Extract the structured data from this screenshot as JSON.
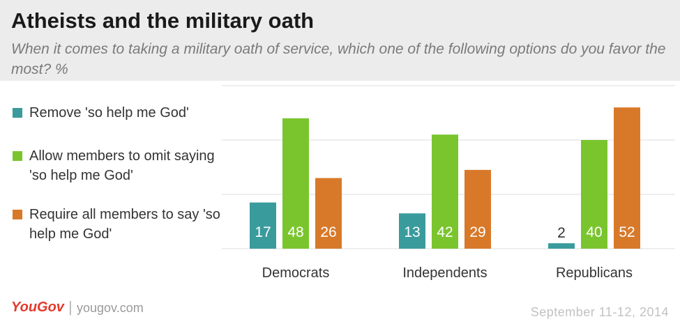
{
  "header": {
    "title": "Atheists and the military oath",
    "subtitle": "When it comes to taking a military oath of service, which one of the following options do you favor the most? %"
  },
  "colors": {
    "remove": "#3a9b9c",
    "allow": "#7ac52e",
    "require": "#d8792a",
    "grid": "#dcdcdc"
  },
  "chart_data": {
    "type": "bar",
    "categories": [
      "Democrats",
      "Independents",
      "Republicans"
    ],
    "series": [
      {
        "name": "Remove 'so help me God'",
        "values": [
          17,
          13,
          2
        ]
      },
      {
        "name": "Allow members to omit saying 'so help me God'",
        "values": [
          48,
          42,
          40
        ]
      },
      {
        "name": "Require all members to say 'so help me God'",
        "values": [
          26,
          29,
          52
        ]
      }
    ],
    "ylim": [
      0,
      60
    ],
    "grid": true,
    "legend_position": "left"
  },
  "footer": {
    "brand": "YouGov",
    "separator": "|",
    "url": "yougov.com",
    "date": "September 11-12, 2014"
  }
}
